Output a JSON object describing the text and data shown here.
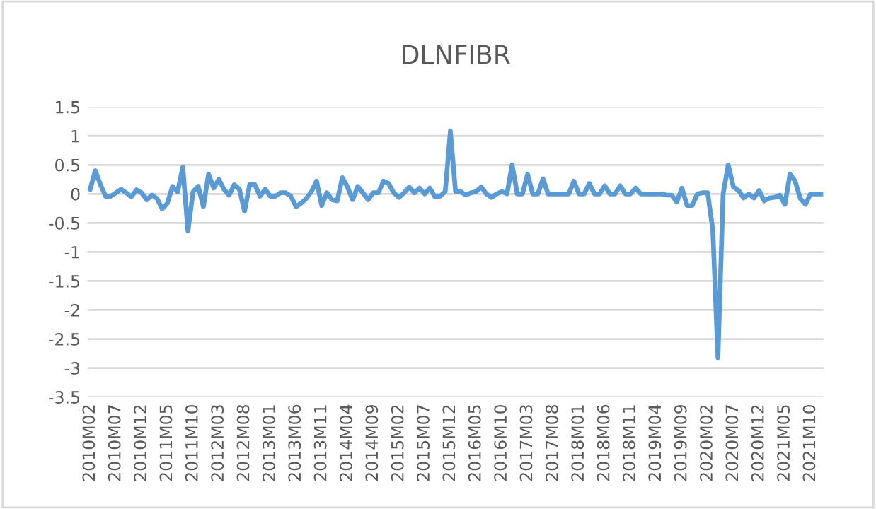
{
  "chart_data": {
    "type": "line",
    "title": "DLNFIBR",
    "categories": [
      "2010M02",
      null,
      null,
      null,
      null,
      "2010M07",
      null,
      null,
      null,
      null,
      "2010M12",
      null,
      null,
      null,
      null,
      "2011M05",
      null,
      null,
      null,
      null,
      "2011M10",
      null,
      null,
      null,
      null,
      "2012M03",
      null,
      null,
      null,
      null,
      "2012M08",
      null,
      null,
      null,
      null,
      "2013M01",
      null,
      null,
      null,
      null,
      "2013M06",
      null,
      null,
      null,
      null,
      "2013M11",
      null,
      null,
      null,
      null,
      "2014M04",
      null,
      null,
      null,
      null,
      "2014M09",
      null,
      null,
      null,
      null,
      "2015M02",
      null,
      null,
      null,
      null,
      "2015M07",
      null,
      null,
      null,
      null,
      "2015M12",
      null,
      null,
      null,
      null,
      "2016M05",
      null,
      null,
      null,
      null,
      "2016M10",
      null,
      null,
      null,
      null,
      "2017M03",
      null,
      null,
      null,
      null,
      "2017M08",
      null,
      null,
      null,
      null,
      "2018M01",
      null,
      null,
      null,
      null,
      "2018M06",
      null,
      null,
      null,
      null,
      "2018M11",
      null,
      null,
      null,
      null,
      "2019M04",
      null,
      null,
      null,
      null,
      "2019M09",
      null,
      null,
      null,
      null,
      "2020M02",
      null,
      null,
      null,
      null,
      "2020M07",
      null,
      null,
      null,
      null,
      "2020M12",
      null,
      null,
      null,
      null,
      "2021M05",
      null,
      null,
      null,
      null,
      "2021M10",
      null,
      null
    ],
    "series": [
      {
        "color": "#5b9bd5",
        "values": [
          0.08,
          0.4,
          0.16,
          -0.04,
          -0.04,
          0.02,
          0.08,
          0.02,
          -0.05,
          0.07,
          0.02,
          -0.1,
          -0.02,
          -0.08,
          -0.26,
          -0.16,
          0.13,
          0.04,
          0.46,
          -0.64,
          0.04,
          0.13,
          -0.22,
          0.34,
          0.1,
          0.25,
          0.08,
          -0.02,
          0.16,
          0.08,
          -0.3,
          0.16,
          0.16,
          -0.04,
          0.08,
          -0.04,
          -0.04,
          0.02,
          0.02,
          -0.04,
          -0.22,
          -0.16,
          -0.08,
          0.04,
          0.22,
          -0.2,
          0.02,
          -0.1,
          -0.12,
          0.28,
          0.12,
          -0.1,
          0.13,
          0.02,
          -0.1,
          0.02,
          0.02,
          0.22,
          0.18,
          0.02,
          -0.06,
          0.02,
          0.12,
          0.02,
          0.1,
          0,
          0.1,
          -0.05,
          -0.04,
          0.04,
          1.08,
          0.04,
          0.04,
          -0.02,
          0.02,
          0.04,
          0.12,
          0,
          -0.06,
          0,
          0.04,
          0,
          0.5,
          0,
          0,
          0.34,
          0,
          0,
          0.26,
          0,
          0,
          0,
          0,
          0,
          0.22,
          0,
          0,
          0.18,
          0,
          0,
          0.14,
          0,
          0,
          0.14,
          0,
          0,
          0.1,
          0,
          0,
          0,
          0,
          0,
          -0.02,
          -0.02,
          -0.14,
          0.1,
          -0.2,
          -0.2,
          0,
          0.02,
          0.02,
          -0.62,
          -2.82,
          0,
          0.5,
          0.12,
          0.06,
          -0.07,
          0,
          -0.07,
          0.06,
          -0.12,
          -0.07,
          -0.06,
          -0.02,
          -0.18,
          0.34,
          0.22,
          -0.08,
          -0.18,
          0,
          0,
          0
        ]
      }
    ],
    "ylim": [
      -3.5,
      1.5
    ],
    "yticks": [
      1.5,
      1,
      0.5,
      0,
      -0.5,
      -1,
      -1.5,
      -2,
      -2.5,
      -3,
      -3.5
    ],
    "grid": "y",
    "line_style": "solid"
  }
}
